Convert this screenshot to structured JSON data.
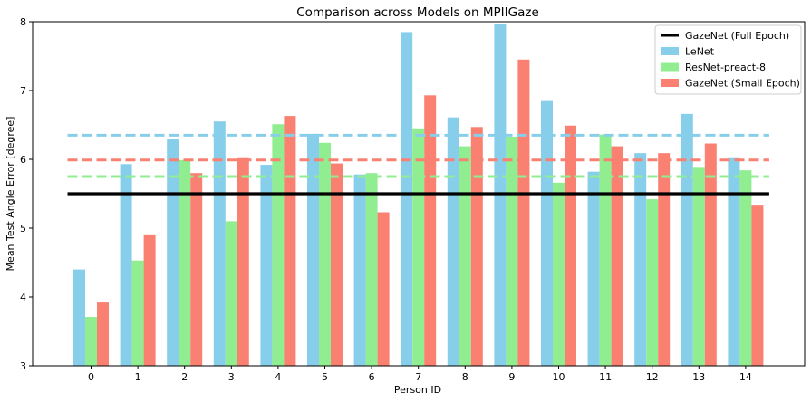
{
  "chart_data": {
    "type": "bar",
    "title": "Comparison across Models on MPIIGaze",
    "xlabel": "Person ID",
    "ylabel": "Mean Test Angle Error [degree]",
    "ylim": [
      3,
      8
    ],
    "yticks": [
      3,
      4,
      5,
      6,
      7,
      8
    ],
    "categories": [
      "0",
      "1",
      "2",
      "3",
      "4",
      "5",
      "6",
      "7",
      "8",
      "9",
      "10",
      "11",
      "12",
      "13",
      "14"
    ],
    "series": [
      {
        "name": "LeNet",
        "color": "#87ceeb",
        "values": [
          4.4,
          5.93,
          6.29,
          6.55,
          5.92,
          6.37,
          5.78,
          7.85,
          6.61,
          7.97,
          6.86,
          5.82,
          6.09,
          6.66,
          6.03
        ]
      },
      {
        "name": "ResNet-preact-8",
        "color": "#90ee90",
        "values": [
          3.71,
          4.53,
          5.99,
          5.1,
          6.51,
          6.24,
          5.8,
          6.45,
          6.19,
          6.33,
          5.66,
          6.36,
          5.42,
          5.89,
          5.84
        ]
      },
      {
        "name": "GazeNet (Small Epoch)",
        "color": "#fa8072",
        "values": [
          3.92,
          4.91,
          5.8,
          6.03,
          6.63,
          5.94,
          5.23,
          6.93,
          6.47,
          7.45,
          6.49,
          6.19,
          6.09,
          6.23,
          5.34
        ]
      }
    ],
    "reference_lines": [
      {
        "name": "GazeNet (Full Epoch)",
        "value": 5.5,
        "color": "#000000",
        "style": "solid",
        "in_legend": true
      },
      {
        "name": "",
        "value": 6.35,
        "color": "#87ceeb",
        "style": "dashed",
        "in_legend": false
      },
      {
        "name": "",
        "value": 5.99,
        "color": "#fa8072",
        "style": "dashed",
        "in_legend": false
      },
      {
        "name": "",
        "value": 5.75,
        "color": "#90ee90",
        "style": "dashed",
        "in_legend": false
      }
    ],
    "legend": [
      "GazeNet (Full Epoch)",
      "LeNet",
      "ResNet-preact-8",
      "GazeNet (Small Epoch)"
    ],
    "legend_position": "top-right",
    "grid": false
  }
}
